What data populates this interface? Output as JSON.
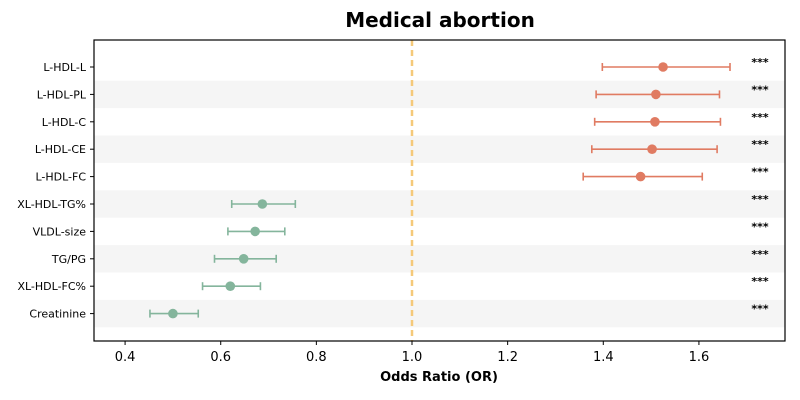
{
  "chart_data": {
    "type": "forest",
    "title": "Medical abortion",
    "xlabel": "Odds Ratio (OR)",
    "ylabel": "",
    "xlim": [
      0.335,
      1.78
    ],
    "x_ticks": [
      0.4,
      0.6,
      0.8,
      1.0,
      1.2,
      1.4,
      1.6
    ],
    "x_tick_labels": [
      "0.4",
      "0.6",
      "0.8",
      "1.0",
      "1.2",
      "1.4",
      "1.6"
    ],
    "reference_line": 1.0,
    "reference_line_color": "#f5c97a",
    "grid": false,
    "row_band_color": "#f5f5f5",
    "colors": {
      "increase": "#e07b62",
      "decrease": "#84b59c"
    },
    "rows": [
      {
        "label": "L-HDL-L",
        "or": 1.525,
        "lower": 1.398,
        "upper": 1.665,
        "sig": "***",
        "direction": "increase"
      },
      {
        "label": "L-HDL-PL",
        "or": 1.51,
        "lower": 1.385,
        "upper": 1.643,
        "sig": "***",
        "direction": "increase"
      },
      {
        "label": "L-HDL-C",
        "or": 1.508,
        "lower": 1.382,
        "upper": 1.645,
        "sig": "***",
        "direction": "increase"
      },
      {
        "label": "L-HDL-CE",
        "or": 1.502,
        "lower": 1.376,
        "upper": 1.638,
        "sig": "***",
        "direction": "increase"
      },
      {
        "label": "L-HDL-FC",
        "or": 1.478,
        "lower": 1.358,
        "upper": 1.607,
        "sig": "***",
        "direction": "increase"
      },
      {
        "label": "XL-HDL-TG%",
        "or": 0.687,
        "lower": 0.623,
        "upper": 0.756,
        "sig": "***",
        "direction": "decrease"
      },
      {
        "label": "VLDL-size",
        "or": 0.672,
        "lower": 0.615,
        "upper": 0.734,
        "sig": "***",
        "direction": "decrease"
      },
      {
        "label": "TG/PG",
        "or": 0.648,
        "lower": 0.587,
        "upper": 0.716,
        "sig": "***",
        "direction": "decrease"
      },
      {
        "label": "XL-HDL-FC%",
        "or": 0.62,
        "lower": 0.562,
        "upper": 0.683,
        "sig": "***",
        "direction": "decrease"
      },
      {
        "label": "Creatinine",
        "or": 0.5,
        "lower": 0.452,
        "upper": 0.553,
        "sig": "***",
        "direction": "decrease"
      }
    ]
  }
}
